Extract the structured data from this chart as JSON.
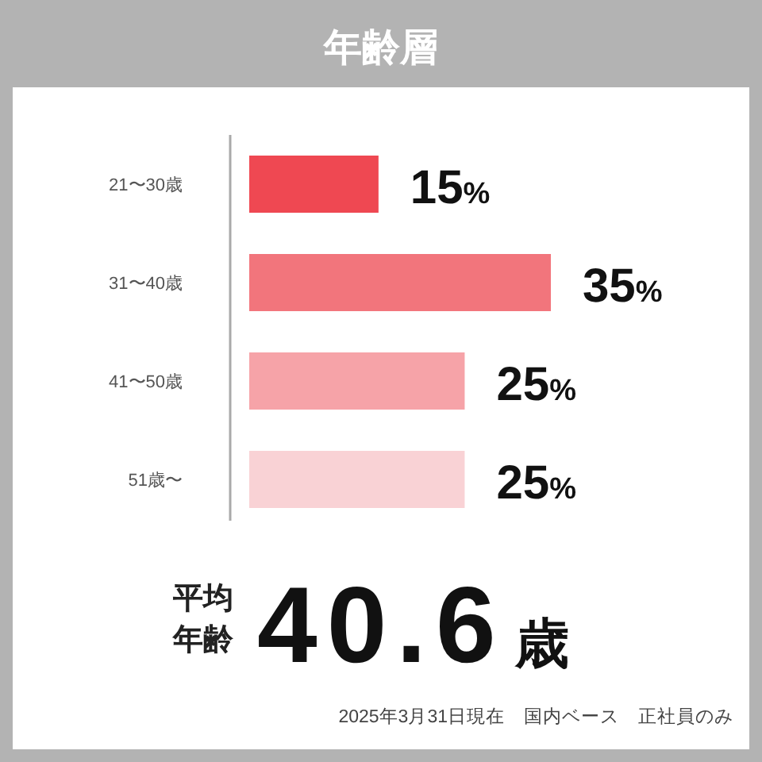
{
  "chart_data": {
    "type": "bar",
    "orientation": "horizontal",
    "title": "年齢層",
    "categories": [
      "21〜30歳",
      "31〜40歳",
      "41〜50歳",
      "51歳〜"
    ],
    "values": [
      15,
      35,
      25,
      25
    ],
    "colors": [
      "#ef4852",
      "#f2757c",
      "#f6a3a8",
      "#f9d2d5"
    ],
    "value_labels": [
      "15%",
      "35%",
      "25%",
      "25%"
    ],
    "annotations": [
      "平均",
      "年齢",
      "40.6歳",
      "2025年3月31日現在　国内ベース　正社員のみ"
    ]
  }
}
